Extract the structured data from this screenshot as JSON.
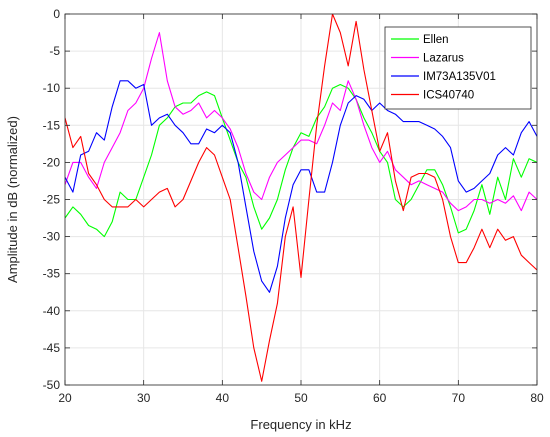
{
  "chart_data": {
    "type": "line",
    "title": "",
    "xlabel": "Frequency in kHz",
    "ylabel": "Amplitude in dB (normalized)",
    "xlim": [
      20,
      80
    ],
    "ylim": [
      -50,
      0
    ],
    "xticks": [
      20,
      30,
      40,
      50,
      60,
      70,
      80
    ],
    "yticks": [
      -50,
      -45,
      -40,
      -35,
      -30,
      -25,
      -20,
      -15,
      -10,
      -5,
      0
    ],
    "grid": true,
    "legend_position": "top-right",
    "series": [
      {
        "name": "Ellen",
        "color": "#00ff00",
        "x": [
          20,
          21,
          22,
          23,
          24,
          25,
          26,
          27,
          28,
          29,
          30,
          31,
          32,
          33,
          34,
          35,
          36,
          37,
          38,
          39,
          40,
          41,
          42,
          43,
          44,
          45,
          46,
          47,
          48,
          49,
          50,
          51,
          52,
          53,
          54,
          55,
          56,
          57,
          58,
          59,
          60,
          61,
          62,
          63,
          64,
          65,
          66,
          67,
          68,
          69,
          70,
          71,
          72,
          73,
          74,
          75,
          76,
          77,
          78,
          79,
          80
        ],
        "y": [
          -27.5,
          -26,
          -27,
          -28.5,
          -29,
          -30,
          -28,
          -24,
          -25,
          -25,
          -22,
          -19,
          -15,
          -14,
          -12.5,
          -12,
          -12,
          -11,
          -10.5,
          -11,
          -14,
          -17,
          -20,
          -22,
          -26,
          -29,
          -27.5,
          -25,
          -21,
          -18,
          -16,
          -16.5,
          -14,
          -12.5,
          -10,
          -9.5,
          -10,
          -11.5,
          -14,
          -16,
          -18.5,
          -20,
          -25,
          -26,
          -25,
          -23,
          -21,
          -21,
          -23,
          -26,
          -29.5,
          -29,
          -26.5,
          -23,
          -27,
          -22,
          -25,
          -19.5,
          -22,
          -19.5,
          -20
        ]
      },
      {
        "name": "Lazarus",
        "color": "#ff00ff",
        "x": [
          20,
          21,
          22,
          23,
          24,
          25,
          26,
          27,
          28,
          29,
          30,
          31,
          32,
          33,
          34,
          35,
          36,
          37,
          38,
          39,
          40,
          41,
          42,
          43,
          44,
          45,
          46,
          47,
          48,
          49,
          50,
          51,
          52,
          53,
          54,
          55,
          56,
          57,
          58,
          59,
          60,
          61,
          62,
          63,
          64,
          65,
          66,
          67,
          68,
          69,
          70,
          71,
          72,
          73,
          74,
          75,
          76,
          77,
          78,
          79,
          80
        ],
        "y": [
          -23,
          -20,
          -20,
          -22,
          -23.5,
          -20,
          -18,
          -16,
          -13,
          -12,
          -10,
          -6,
          -2.5,
          -9,
          -12.5,
          -13.5,
          -13,
          -12,
          -14,
          -13,
          -14,
          -15.5,
          -18,
          -21.5,
          -24,
          -25,
          -22,
          -20,
          -19,
          -18,
          -17,
          -17,
          -17.5,
          -15,
          -12,
          -13,
          -9,
          -11.5,
          -15,
          -18,
          -20,
          -18.5,
          -21,
          -22,
          -23,
          -22.5,
          -23,
          -23.5,
          -24,
          -25.5,
          -26.5,
          -26,
          -25,
          -25,
          -25.5,
          -25,
          -25.5,
          -24.5,
          -26.5,
          -24,
          -25
        ]
      },
      {
        "name": "IM73A135V01",
        "color": "#0000ff",
        "x": [
          20,
          21,
          22,
          23,
          24,
          25,
          26,
          27,
          28,
          29,
          30,
          31,
          32,
          33,
          34,
          35,
          36,
          37,
          38,
          39,
          40,
          41,
          42,
          43,
          44,
          45,
          46,
          47,
          48,
          49,
          50,
          51,
          52,
          53,
          54,
          55,
          56,
          57,
          58,
          59,
          60,
          61,
          62,
          63,
          64,
          65,
          66,
          67,
          68,
          69,
          70,
          71,
          72,
          73,
          74,
          75,
          76,
          77,
          78,
          79,
          80
        ],
        "y": [
          -22,
          -24,
          -19,
          -18.5,
          -16,
          -17,
          -12.5,
          -9,
          -9,
          -10,
          -9.5,
          -15,
          -14,
          -13.5,
          -15,
          -16,
          -17.5,
          -17.5,
          -15.5,
          -16,
          -15,
          -16,
          -20,
          -26,
          -32,
          -36,
          -37.5,
          -34,
          -27.5,
          -23,
          -21,
          -21,
          -24,
          -24,
          -20,
          -15,
          -12,
          -11,
          -11.5,
          -13,
          -12,
          -13,
          -13.5,
          -14.5,
          -14.5,
          -14.5,
          -15,
          -15.5,
          -16.5,
          -18,
          -22.5,
          -24,
          -23.5,
          -22.5,
          -21.5,
          -19,
          -18,
          -19,
          -16,
          -14.5,
          -16.5
        ]
      },
      {
        "name": "ICS40740",
        "color": "#ff0000",
        "x": [
          20,
          21,
          22,
          23,
          24,
          25,
          26,
          27,
          28,
          29,
          30,
          31,
          32,
          33,
          34,
          35,
          36,
          37,
          38,
          39,
          40,
          41,
          42,
          43,
          44,
          45,
          46,
          47,
          48,
          49,
          50,
          51,
          52,
          53,
          54,
          55,
          56,
          57,
          58,
          59,
          60,
          61,
          62,
          63,
          64,
          65,
          66,
          67,
          68,
          69,
          70,
          71,
          72,
          73,
          74,
          75,
          76,
          77,
          78,
          79,
          80
        ],
        "y": [
          -14,
          -18,
          -16.5,
          -21.5,
          -23,
          -25,
          -26,
          -26,
          -26,
          -25,
          -26,
          -25,
          -24,
          -23.5,
          -26,
          -25,
          -22.5,
          -20,
          -18,
          -19,
          -22,
          -25,
          -31.5,
          -38,
          -45,
          -49.5,
          -44,
          -39,
          -30,
          -26,
          -35.5,
          -25,
          -15,
          -7,
          0,
          -2.5,
          -7,
          -1,
          -7.5,
          -13,
          -18.5,
          -16,
          -22.5,
          -26.5,
          -22,
          -21.5,
          -21.5,
          -22,
          -25,
          -30,
          -33.5,
          -33.5,
          -31.5,
          -29,
          -31.5,
          -29,
          -30.5,
          -30,
          -32.5,
          -33.5,
          -34.5
        ]
      }
    ]
  }
}
